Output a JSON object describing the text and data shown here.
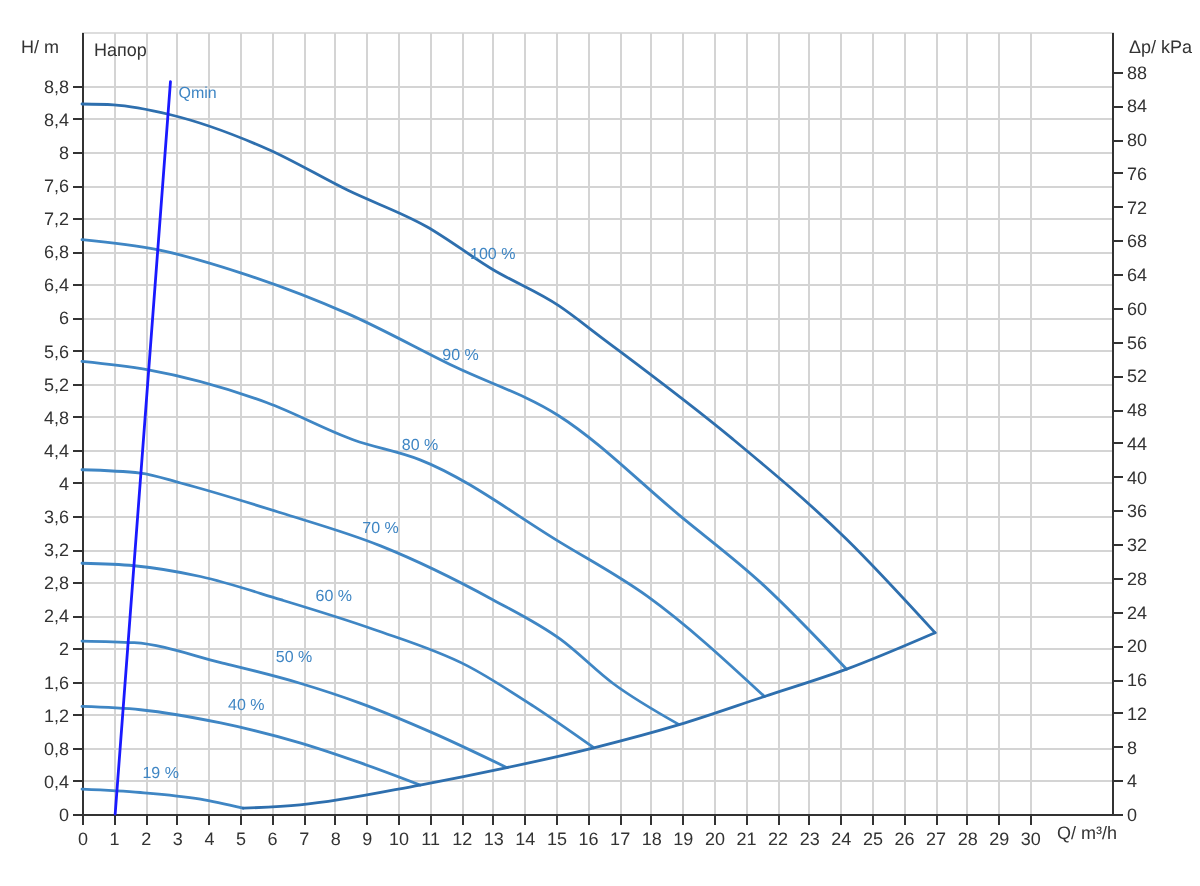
{
  "chart_data": {
    "type": "line",
    "xlabel": "Q/ m³/h",
    "ylabel": "H/ m",
    "y2label": "Δp/ kPa",
    "xlim": [
      0,
      32.6
    ],
    "xticks": [
      0,
      1,
      2,
      3,
      4,
      5,
      6,
      7,
      8,
      9,
      10,
      11,
      12,
      13,
      14,
      15,
      16,
      17,
      18,
      19,
      20,
      21,
      22,
      23,
      24,
      25,
      26,
      27,
      28,
      29,
      30
    ],
    "ylim": [
      0,
      9.45
    ],
    "yticks": [
      0,
      {
        "value": 0.4,
        "label": "0,4"
      },
      {
        "value": 0.8,
        "label": "0,8"
      },
      {
        "value": 1.2,
        "label": "1,2"
      },
      {
        "value": 1.6,
        "label": "1,6"
      },
      2,
      {
        "value": 2.4,
        "label": "2,4"
      },
      {
        "value": 2.8,
        "label": "2,8"
      },
      {
        "value": 3.2,
        "label": "3,2"
      },
      {
        "value": 3.6,
        "label": "3,6"
      },
      4,
      {
        "value": 4.4,
        "label": "4,4"
      },
      {
        "value": 4.8,
        "label": "4,8"
      },
      {
        "value": 5.2,
        "label": "5,2"
      },
      {
        "value": 5.6,
        "label": "5,6"
      },
      6,
      {
        "value": 6.4,
        "label": "6,4"
      },
      {
        "value": 6.8,
        "label": "6,8"
      },
      {
        "value": 7.2,
        "label": "7,2"
      },
      {
        "value": 7.6,
        "label": "7,6"
      },
      8,
      {
        "value": 8.4,
        "label": "8,4"
      },
      {
        "value": 8.8,
        "label": "8,8"
      }
    ],
    "y2lim": [
      0,
      92.7
    ],
    "y2ticks": [
      0,
      4,
      8,
      12,
      16,
      20,
      24,
      28,
      32,
      36,
      40,
      44,
      48,
      52,
      56,
      60,
      64,
      68,
      72,
      76,
      80,
      84,
      88
    ],
    "grid": true,
    "series": [
      {
        "color": "#2e6fae",
        "x": [
          0,
          1,
          2.8,
          5.9,
          8.4,
          10.9,
          13,
          15.1,
          16.4,
          20.6,
          24.2,
          27
        ],
        "values": [
          8.58,
          8.57,
          8.45,
          8.03,
          7.54,
          7.1,
          6.58,
          6.14,
          5.77,
          4.53,
          3.32,
          2.19
        ]
      },
      {
        "color": "#3f86c4",
        "x": [
          0,
          2.38,
          5.02,
          8.39,
          11.77,
          15.1,
          18.94,
          21.5,
          24.2
        ],
        "values": [
          6.94,
          6.82,
          6.54,
          6.05,
          5.41,
          4.81,
          3.6,
          2.79,
          1.75
        ]
      },
      {
        "color": "#3f86c4",
        "x": [
          0,
          2.06,
          5.86,
          8.6,
          10.7,
          15.15,
          17.9,
          21.6
        ],
        "values": [
          5.47,
          5.37,
          4.97,
          4.52,
          4.28,
          3.28,
          2.63,
          1.42
        ]
      },
      {
        "color": "#3f86c4",
        "x": [
          0,
          1.85,
          3.12,
          6.29,
          9.45,
          13,
          15.15,
          16.8,
          18.9
        ],
        "values": [
          4.16,
          4.12,
          4.0,
          3.64,
          3.24,
          2.59,
          2.11,
          1.58,
          1.08
        ]
      },
      {
        "color": "#3f86c4",
        "x": [
          0,
          1.65,
          3.75,
          6.29,
          9.24,
          12.2,
          14.3,
          16.2
        ],
        "values": [
          3.03,
          3.0,
          2.87,
          2.59,
          2.23,
          1.79,
          1.3,
          0.8
        ]
      },
      {
        "color": "#3f86c4",
        "x": [
          0,
          1.65,
          4.39,
          6.9,
          8.8,
          11.1,
          13.45
        ],
        "values": [
          2.09,
          2.07,
          1.83,
          1.58,
          1.34,
          0.98,
          0.56
        ]
      },
      {
        "color": "#3f86c4",
        "x": [
          0,
          1.85,
          4.39,
          6.9,
          8.8,
          10.7
        ],
        "values": [
          1.3,
          1.26,
          1.1,
          0.86,
          0.62,
          0.35
        ]
      },
      {
        "color": "#3f86c4",
        "x": [
          0,
          1.85,
          3.75,
          5.1
        ],
        "values": [
          0.3,
          0.26,
          0.18,
          0.07
        ]
      },
      {
        "color": "#2e6fae",
        "x": [
          5.1,
          6.9,
          10.7,
          13.45,
          16.2,
          18.9,
          21.6,
          24.2,
          27
        ],
        "values": [
          0.07,
          0.11,
          0.35,
          0.56,
          0.8,
          1.08,
          1.42,
          1.75,
          2.19
        ]
      },
      {
        "color": "#1a1aff",
        "x": [
          1.05,
          2.8
        ],
        "values": [
          0,
          8.85
        ]
      }
    ],
    "annotations": [
      "Напор",
      "Qmin",
      {
        "text": "100 %",
        "x": 13,
        "y": 6.58
      },
      {
        "text": "90 %",
        "x": 11.98,
        "y": 5.37
      },
      {
        "text": "80 %",
        "x": 10.7,
        "y": 4.28
      },
      {
        "text": "70 %",
        "x": 9.45,
        "y": 3.28
      },
      {
        "text": "60 %",
        "x": 7.97,
        "y": 2.45
      },
      {
        "text": "50 %",
        "x": 6.71,
        "y": 1.71
      },
      {
        "text": "40 %",
        "x": 5.2,
        "y": 1.14
      },
      {
        "text": "19 %",
        "x": 2.49,
        "y": 0.32
      }
    ]
  }
}
